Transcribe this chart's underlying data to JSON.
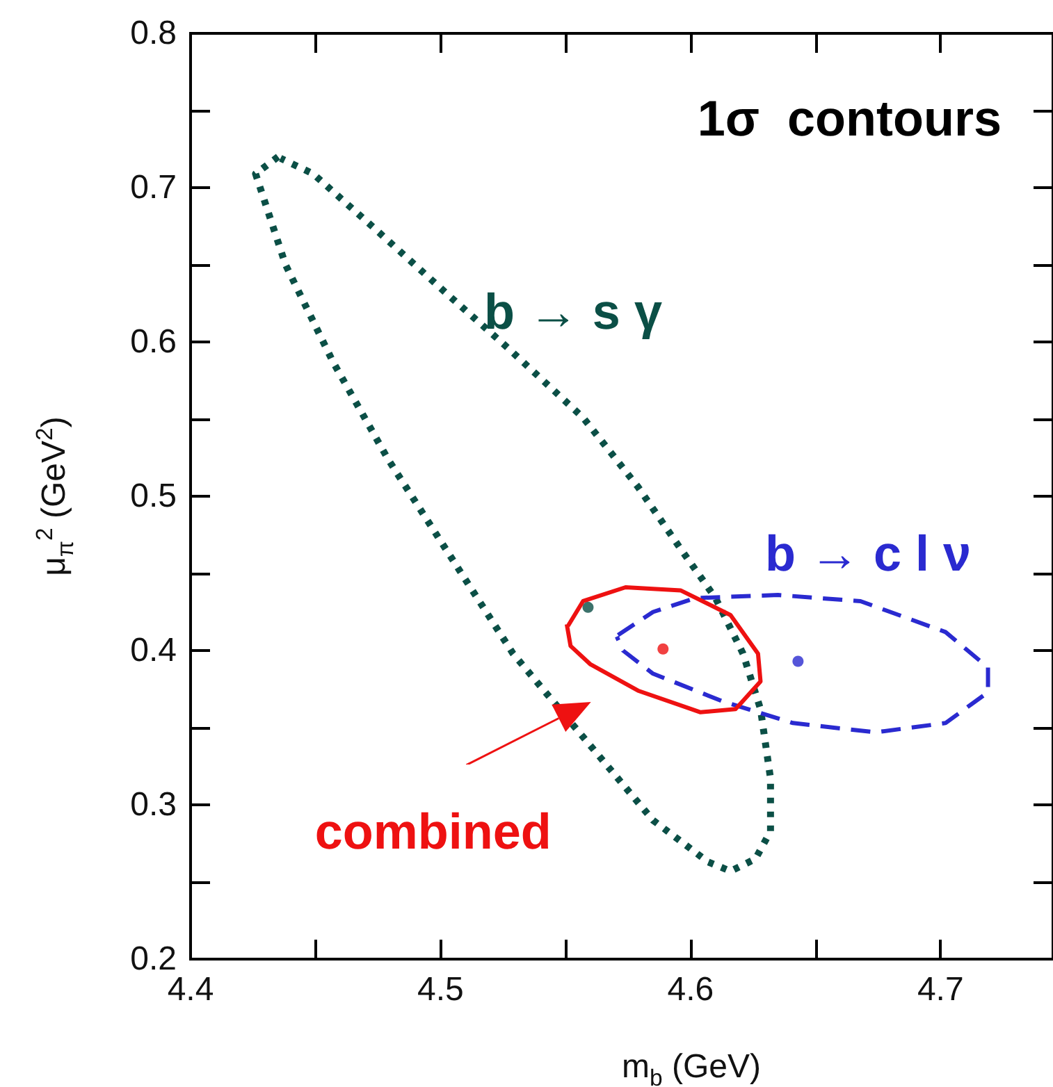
{
  "chart_data": {
    "type": "line",
    "title": "1σ  contours",
    "xlabel": "m$_{b}$  (GeV)",
    "ylabel": "μ$_{π}$$^{2}$  (GeV$^{2}$)",
    "xlim": [
      4.4,
      4.745
    ],
    "ylim": [
      0.2,
      0.8
    ],
    "xticks": [
      4.4,
      {
        "value": 4.45,
        "label": null
      },
      4.5,
      {
        "value": 4.55,
        "label": null
      },
      4.6,
      {
        "value": 4.65,
        "label": null
      },
      4.7
    ],
    "yticks": [
      0.2,
      {
        "value": 0.25,
        "label": null
      },
      0.3,
      {
        "value": 0.35,
        "label": null
      },
      0.4,
      {
        "value": 0.45,
        "label": null
      },
      0.5,
      {
        "value": 0.55,
        "label": null
      },
      0.6,
      {
        "value": 0.65,
        "label": null
      },
      0.7,
      {
        "value": 0.75,
        "label": null
      },
      0.8
    ],
    "grid": false,
    "legend": false,
    "series": [
      {
        "name": "b → s γ",
        "color": "#0b4f46",
        "line_style": "dotted",
        "marker": "none",
        "x": [
          4.435,
          4.426,
          4.438,
          4.457,
          4.479,
          4.502,
          4.529,
          4.557,
          4.585,
          4.607,
          4.616,
          4.626,
          4.632,
          4.632,
          4.628,
          4.621,
          4.61,
          4.596,
          4.579,
          4.557,
          4.527,
          4.502,
          4.474,
          4.449,
          4.436
        ],
        "values": [
          0.72,
          0.709,
          0.65,
          0.587,
          0.524,
          0.466,
          0.398,
          0.344,
          0.29,
          0.263,
          0.257,
          0.265,
          0.283,
          0.317,
          0.362,
          0.398,
          0.434,
          0.466,
          0.506,
          0.551,
          0.596,
          0.632,
          0.673,
          0.709,
          0.719
        ]
      },
      {
        "name": "b → c l ν",
        "color": "#2a2ad0",
        "line_style": "dashed",
        "marker": "none",
        "x": [
          4.571,
          4.585,
          4.602,
          4.635,
          4.668,
          4.702,
          4.719,
          4.719,
          4.702,
          4.674,
          4.641,
          4.613,
          4.585,
          4.573,
          4.5705
        ],
        "values": [
          0.41,
          0.425,
          0.434,
          0.436,
          0.432,
          0.412,
          0.389,
          0.373,
          0.353,
          0.347,
          0.353,
          0.367,
          0.385,
          0.4,
          0.409
        ]
      },
      {
        "name": "combined",
        "color": "#ee1111",
        "line_style": "solid",
        "marker": "none",
        "x": [
          4.551,
          4.557,
          4.574,
          4.596,
          4.616,
          4.627,
          4.628,
          4.618,
          4.604,
          4.579,
          4.56,
          4.552,
          4.5505
        ],
        "values": [
          0.416,
          0.432,
          0.441,
          0.439,
          0.423,
          0.398,
          0.38,
          0.362,
          0.36,
          0.374,
          0.391,
          0.403,
          0.417
        ]
      },
      {
        "type": "scatter",
        "color": "#0b4f46",
        "marker": "circle",
        "x": [
          4.559
        ],
        "values": [
          0.428
        ]
      },
      {
        "type": "scatter",
        "color": "#2a2ad0",
        "marker": "circle",
        "x": [
          4.643
        ],
        "values": [
          0.393
        ]
      },
      {
        "type": "scatter",
        "color": "#ee1111",
        "marker": "circle",
        "x": [
          4.589
        ],
        "values": [
          0.401
        ]
      }
    ]
  }
}
